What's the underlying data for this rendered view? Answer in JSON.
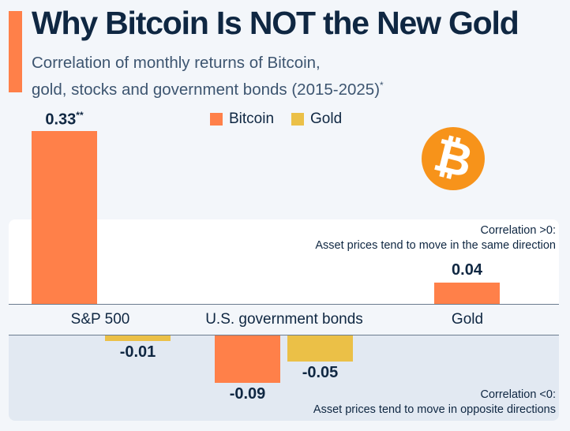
{
  "header": {
    "title": "Why Bitcoin Is NOT the New Gold",
    "subtitle_line1": "Correlation of monthly returns of Bitcoin,",
    "subtitle_line2": "gold, stocks and government bonds (2015-2025)",
    "subtitle_footnote_mark": "*"
  },
  "icons": {
    "logo": "bitcoin-logo-icon",
    "logo_glyph": "₿"
  },
  "annotations": {
    "positive_line1": "Correlation >0:",
    "positive_line2": "Asset prices tend to move in the same direction",
    "negative_line1": "Correlation <0:",
    "negative_line2": "Asset prices tend to move in opposite directions"
  },
  "colors": {
    "bitcoin": "#ff8049",
    "gold": "#ebc047",
    "accent": "#ff8049",
    "logo": "#f7931a"
  },
  "chart_data": {
    "type": "bar",
    "title": "Why Bitcoin Is NOT the New Gold",
    "subtitle": "Correlation of monthly returns of Bitcoin, gold, stocks and government bonds (2015-2025)*",
    "categories": [
      "S&P 500",
      "U.S. government bonds",
      "Gold"
    ],
    "series": [
      {
        "name": "Bitcoin",
        "values": [
          0.33,
          -0.09,
          0.04
        ],
        "labels": [
          "0.33",
          "-0.09",
          "0.04"
        ],
        "label_marks": [
          "**",
          "",
          ""
        ]
      },
      {
        "name": "Gold",
        "values": [
          -0.01,
          -0.05,
          null
        ],
        "labels": [
          "-0.01",
          "-0.05",
          ""
        ],
        "label_marks": [
          "",
          "",
          ""
        ]
      }
    ],
    "legend": [
      "Bitcoin",
      "Gold"
    ],
    "legend_position": "top-center",
    "xlabel": "",
    "ylabel": "",
    "ylim": [
      -0.1,
      0.35
    ],
    "grid": false
  }
}
